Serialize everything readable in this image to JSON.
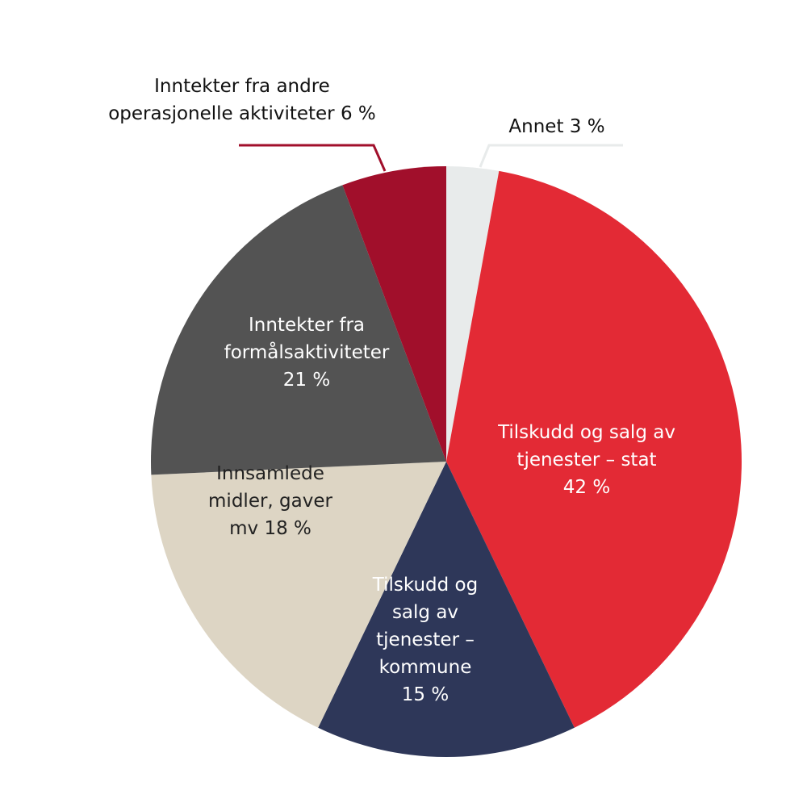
{
  "chart_data": {
    "type": "pie",
    "categories": [
      "Annet",
      "Tilskudd og salg av tjenester – stat",
      "Tilskudd og salg av tjenester – kommune",
      "Innsamlede midler, gaver mv",
      "Inntekter fra formålsaktiviteter",
      "Inntekter fra andre operasjonelle aktiviteter"
    ],
    "values": [
      3,
      42,
      15,
      18,
      21,
      6
    ],
    "value_labels": [
      "3 %",
      "42 %",
      "15 %",
      "18 %",
      "21 %",
      "6 %"
    ],
    "colors": [
      "#e8ebeb",
      "#e32a35",
      "#2e3759",
      "#ddd5c4",
      "#535353",
      "#a10f2b"
    ]
  }
}
